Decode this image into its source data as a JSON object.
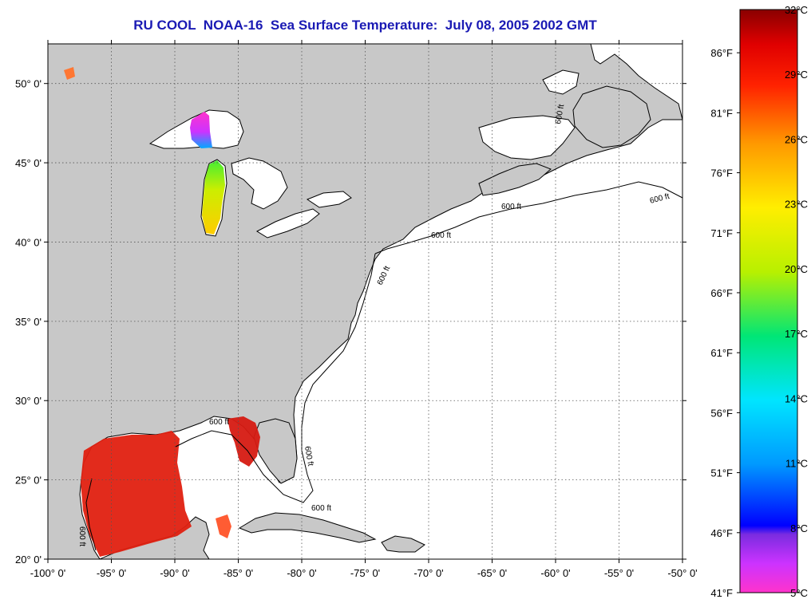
{
  "title": "RU COOL  NOAA-16  Sea Surface Temperature:  July 08, 2005 2002 GMT",
  "map": {
    "lon_range": [
      -100,
      -50
    ],
    "lat_range": [
      20,
      52.5
    ],
    "lon_ticks": [
      {
        "value": -100,
        "label": "-100° 0'"
      },
      {
        "value": -95,
        "label": "-95° 0'"
      },
      {
        "value": -90,
        "label": "-90° 0'"
      },
      {
        "value": -85,
        "label": "-85° 0'"
      },
      {
        "value": -80,
        "label": "-80° 0'"
      },
      {
        "value": -75,
        "label": "-75° 0'"
      },
      {
        "value": -70,
        "label": "-70° 0'"
      },
      {
        "value": -65,
        "label": "-65° 0'"
      },
      {
        "value": -60,
        "label": "-60° 0'"
      },
      {
        "value": -55,
        "label": "-55° 0'"
      },
      {
        "value": -50,
        "label": "-50° 0'"
      }
    ],
    "lat_ticks": [
      {
        "value": 20,
        "label": "20° 0'"
      },
      {
        "value": 25,
        "label": "25° 0'"
      },
      {
        "value": 30,
        "label": "30° 0'"
      },
      {
        "value": 35,
        "label": "35° 0'"
      },
      {
        "value": 40,
        "label": "40° 0'"
      },
      {
        "value": 45,
        "label": "45° 0'"
      },
      {
        "value": 50,
        "label": "50° 0'"
      }
    ],
    "contour_labels": [
      "600 ft",
      "600 ft",
      "600 ft",
      "600 ft",
      "600 ft",
      "600 ft",
      "600 ft",
      "600 ft",
      "600 ft"
    ],
    "colors": {
      "land": "#c8c8c8",
      "ocean": "#ffffff",
      "coast": "#000000",
      "grid": "#444444"
    }
  },
  "colorbar": {
    "range_c": [
      5,
      32
    ],
    "celsius_labels": [
      {
        "value": 5,
        "label": "5°C"
      },
      {
        "value": 8,
        "label": "8°C"
      },
      {
        "value": 11,
        "label": "11°C"
      },
      {
        "value": 14,
        "label": "14°C"
      },
      {
        "value": 17,
        "label": "17°C"
      },
      {
        "value": 20,
        "label": "20°C"
      },
      {
        "value": 23,
        "label": "23°C"
      },
      {
        "value": 26,
        "label": "26°C"
      },
      {
        "value": 29,
        "label": "29°C"
      },
      {
        "value": 32,
        "label": "32°C"
      }
    ],
    "fahrenheit_labels": [
      {
        "value": 41,
        "label": "41°F"
      },
      {
        "value": 46,
        "label": "46°F"
      },
      {
        "value": 51,
        "label": "51°F"
      },
      {
        "value": 56,
        "label": "56°F"
      },
      {
        "value": 61,
        "label": "61°F"
      },
      {
        "value": 66,
        "label": "66°F"
      },
      {
        "value": 71,
        "label": "71°F"
      },
      {
        "value": 76,
        "label": "76°F"
      },
      {
        "value": 81,
        "label": "81°F"
      },
      {
        "value": 86,
        "label": "86°F"
      }
    ],
    "gradient": [
      "#ff33cc",
      "#cc33ff",
      "#7a2ce0",
      "#0000ff",
      "#0099ff",
      "#00e5ff",
      "#00e676",
      "#b8f000",
      "#ffee00",
      "#ff9900",
      "#ff2200",
      "#e00000",
      "#8a0000"
    ]
  }
}
